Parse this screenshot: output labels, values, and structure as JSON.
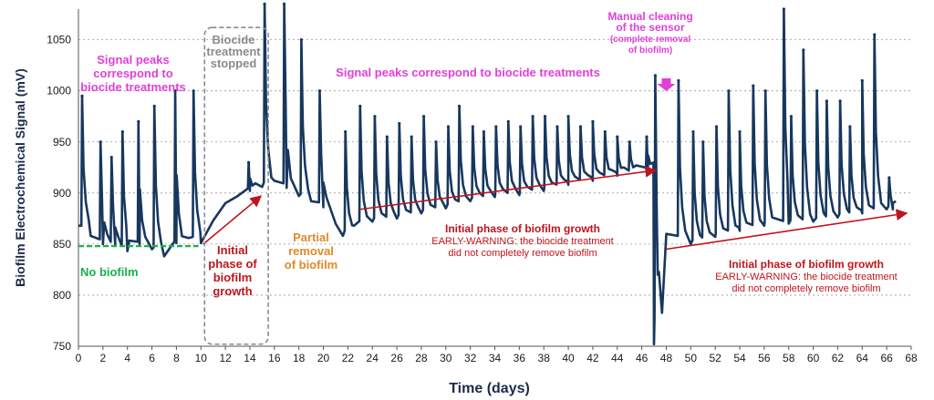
{
  "chart_data": {
    "type": "line",
    "xlabel": "Time (days)",
    "ylabel": "Biofilm Electrochemical Signal (mV)",
    "xlim": [
      0,
      68
    ],
    "ylim": [
      750,
      1080
    ],
    "x_ticks": [
      0,
      2,
      4,
      6,
      8,
      10,
      12,
      14,
      16,
      18,
      20,
      22,
      24,
      26,
      28,
      30,
      32,
      34,
      36,
      38,
      40,
      42,
      44,
      46,
      48,
      50,
      52,
      54,
      56,
      58,
      60,
      62,
      64,
      66,
      68
    ],
    "y_ticks": [
      750,
      800,
      850,
      900,
      950,
      1000,
      1050
    ],
    "grid": "horizontal dotted",
    "series_color": "#17375e",
    "baseline_points": [
      [
        0,
        868
      ],
      [
        1,
        858
      ],
      [
        2,
        850
      ],
      [
        3,
        849
      ],
      [
        4,
        843
      ],
      [
        5,
        850
      ],
      [
        6,
        845
      ],
      [
        7,
        838
      ],
      [
        8,
        851
      ],
      [
        9,
        856
      ],
      [
        10,
        851
      ],
      [
        11,
        873
      ],
      [
        12,
        890
      ],
      [
        13,
        897
      ],
      [
        14,
        902
      ],
      [
        15,
        906
      ],
      [
        16,
        912
      ],
      [
        17,
        905
      ],
      [
        18,
        897
      ],
      [
        19,
        892
      ],
      [
        20,
        886
      ],
      [
        21,
        870
      ],
      [
        21.6,
        858
      ],
      [
        22.5,
        868
      ],
      [
        24,
        872
      ],
      [
        26,
        875
      ],
      [
        28,
        880
      ],
      [
        30,
        885
      ],
      [
        32,
        892
      ],
      [
        34,
        896
      ],
      [
        36,
        898
      ],
      [
        38,
        902
      ],
      [
        40,
        908
      ],
      [
        42,
        912
      ],
      [
        44,
        917
      ],
      [
        46.5,
        922
      ],
      [
        47,
        752
      ],
      [
        47.3,
        820
      ],
      [
        48,
        860
      ],
      [
        50,
        850
      ],
      [
        52,
        857
      ],
      [
        54,
        863
      ],
      [
        56,
        868
      ],
      [
        58,
        870
      ],
      [
        60,
        872
      ],
      [
        62,
        876
      ],
      [
        64,
        880
      ],
      [
        66,
        884
      ],
      [
        66.5,
        884
      ]
    ],
    "peaks": [
      [
        0.3,
        995
      ],
      [
        1.8,
        950
      ],
      [
        2.7,
        935
      ],
      [
        3.6,
        960
      ],
      [
        4.9,
        970
      ],
      [
        6.2,
        985
      ],
      [
        7.9,
        1000
      ],
      [
        9.4,
        1000
      ],
      [
        13.9,
        930
      ],
      [
        15.2,
        1085
      ],
      [
        16.8,
        1085
      ],
      [
        18.2,
        1050
      ],
      [
        19.7,
        1000
      ],
      [
        21.8,
        960
      ],
      [
        23.0,
        985
      ],
      [
        24.2,
        975
      ],
      [
        25.2,
        955
      ],
      [
        26.2,
        968
      ],
      [
        27.2,
        955
      ],
      [
        28.2,
        975
      ],
      [
        29.2,
        950
      ],
      [
        30.2,
        965
      ],
      [
        31.1,
        985
      ],
      [
        32.2,
        965
      ],
      [
        33.1,
        960
      ],
      [
        34.1,
        965
      ],
      [
        35.1,
        970
      ],
      [
        36.1,
        965
      ],
      [
        37.1,
        975
      ],
      [
        38.1,
        975
      ],
      [
        39.1,
        965
      ],
      [
        40.0,
        975
      ],
      [
        41.0,
        965
      ],
      [
        42.0,
        970
      ],
      [
        43.0,
        960
      ],
      [
        44.0,
        955
      ],
      [
        45.0,
        950
      ],
      [
        46.4,
        955
      ],
      [
        47.1,
        1015
      ],
      [
        49.0,
        1010
      ],
      [
        50.2,
        960
      ],
      [
        51.0,
        950
      ],
      [
        52.1,
        965
      ],
      [
        53.1,
        1000
      ],
      [
        54.0,
        960
      ],
      [
        55.1,
        1005
      ],
      [
        56.1,
        1000
      ],
      [
        57.6,
        1080
      ],
      [
        58.2,
        975
      ],
      [
        59.2,
        1040
      ],
      [
        60.3,
        1000
      ],
      [
        61.1,
        990
      ],
      [
        62.2,
        990
      ],
      [
        63.0,
        965
      ],
      [
        64.0,
        1010
      ],
      [
        65.0,
        1055
      ],
      [
        66.2,
        915
      ]
    ],
    "annotations": [
      {
        "id": "ann-peaks-left",
        "lines": [
          "Signal peaks",
          "correspond to",
          "biocide treatments"
        ],
        "color": "#e040d8"
      },
      {
        "id": "ann-biocide-stopped",
        "lines": [
          "Biocide",
          "treatment",
          "stopped"
        ],
        "color": "#8a8a8a"
      },
      {
        "id": "ann-peaks-mid",
        "lines": [
          "Signal peaks correspond to biocide treatments"
        ],
        "color": "#e040d8"
      },
      {
        "id": "ann-manual-cleaning",
        "lines": [
          "Manual cleaning",
          "of the sensor",
          "(complete removal",
          "of biofilm)"
        ],
        "color": "#e040d8"
      },
      {
        "id": "ann-no-biofilm",
        "lines": [
          "No biofilm"
        ],
        "color": "#18b24a"
      },
      {
        "id": "ann-initial-phase-1",
        "lines": [
          "Initial",
          "phase of",
          "biofilm",
          "growth"
        ],
        "color": "#c0141c"
      },
      {
        "id": "ann-partial-removal",
        "lines": [
          "Partial",
          "removal",
          "of biofilm"
        ],
        "color": "#e08a28"
      },
      {
        "id": "ann-initial-phase-2",
        "lines": [
          "Initial phase of biofilm growth",
          "EARLY-WARNING: the biocide treatment",
          "did not completely remove biofilm"
        ],
        "color": "#c0141c"
      },
      {
        "id": "ann-initial-phase-3",
        "lines": [
          "Initial phase of biofilm growth",
          "EARLY-WARNING: the biocide treatment",
          "did not completely remove biofilm"
        ],
        "color": "#c0141c"
      }
    ],
    "trend_arrows": [
      {
        "from": [
          10.2,
          850
        ],
        "to": [
          14.8,
          896
        ],
        "color": "#c0141c"
      },
      {
        "from": [
          23,
          884
        ],
        "to": [
          47,
          922
        ],
        "color": "#c0141c"
      },
      {
        "from": [
          48,
          845
        ],
        "to": [
          67.5,
          880
        ],
        "color": "#c0141c"
      }
    ],
    "no_biofilm_line": {
      "from": [
        0,
        848
      ],
      "to": [
        9.8,
        848
      ],
      "color": "#18b24a"
    }
  }
}
